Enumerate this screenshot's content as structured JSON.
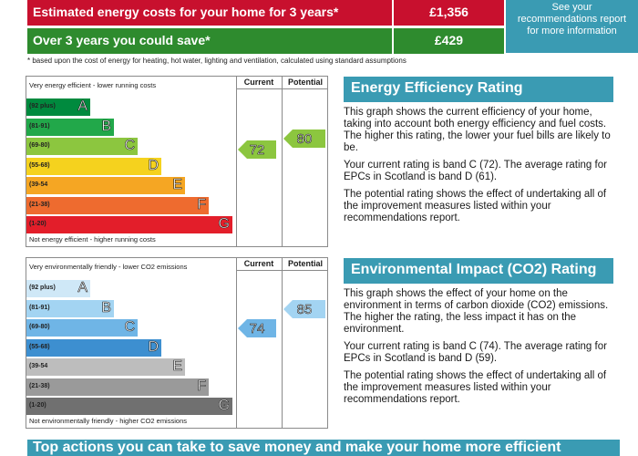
{
  "costs": {
    "estimated_label": "Estimated energy costs for your home for 3 years*",
    "estimated_value": "£1,356",
    "save_label": "Over 3 years you could save*",
    "save_value": "£429",
    "info_link": "See your recommendations report for more information",
    "footnote": "* based upon the cost of energy for heating, hot water, lighting and ventilation, calculated using standard assumptions"
  },
  "energy_chart": {
    "top_text": "Very energy efficient - lower running costs",
    "bottom_text": "Not energy efficient - higher running costs",
    "col_current": "Current",
    "col_potential": "Potential",
    "current": "72",
    "potential": "80",
    "bands": [
      {
        "range": "(92 plus)",
        "letter": "A",
        "color": "#008a3e"
      },
      {
        "range": "(81-91)",
        "letter": "B",
        "color": "#22a84a"
      },
      {
        "range": "(69-80)",
        "letter": "C",
        "color": "#8cc63f"
      },
      {
        "range": "(55-68)",
        "letter": "D",
        "color": "#f5d21e"
      },
      {
        "range": "(39-54",
        "letter": "E",
        "color": "#f5a623"
      },
      {
        "range": "(21-38)",
        "letter": "F",
        "color": "#ee6b2f"
      },
      {
        "range": "(1-20)",
        "letter": "G",
        "color": "#e31e2a"
      }
    ]
  },
  "env_chart": {
    "top_text": "Very environmentally friendly - lower CO2 emissions",
    "bottom_text": "Not environmentally friendly - higher CO2 emissions",
    "col_current": "Current",
    "col_potential": "Potential",
    "current": "74",
    "potential": "85",
    "bands": [
      {
        "range": "(92 plus)",
        "letter": "A",
        "color": "#cfe8f7"
      },
      {
        "range": "(81-91)",
        "letter": "B",
        "color": "#a3d4f2"
      },
      {
        "range": "(69-80)",
        "letter": "C",
        "color": "#6fb5e6"
      },
      {
        "range": "(55-68)",
        "letter": "D",
        "color": "#3d8fd0"
      },
      {
        "range": "(39-54",
        "letter": "E",
        "color": "#bdbdbd"
      },
      {
        "range": "(21-38)",
        "letter": "F",
        "color": "#9a9a9a"
      },
      {
        "range": "(1-20)",
        "letter": "G",
        "color": "#707070"
      }
    ]
  },
  "energy_panel": {
    "title": "Energy Efficiency Rating",
    "p1": "This graph shows the current efficiency of your home, taking into account both energy efficiency and fuel costs. The higher this rating, the lower your fuel bills are likely to be.",
    "p2": "Your current rating is band C (72). The average rating for EPCs in Scotland is band D (61).",
    "p3": "The potential rating shows the effect of undertaking all of the improvement measures listed within your recommendations report."
  },
  "env_panel": {
    "title": "Environmental Impact (CO2) Rating",
    "p1": "This graph shows the effect of your home on the environment in terms of carbon dioxide (CO2) emissions. The higher the rating, the less impact it has on the environment.",
    "p2": "Your current rating is band C (74). The average rating for EPCs in Scotland is band D (59).",
    "p3": "The potential rating shows the effect of undertaking all of the improvement measures listed within your recommendations report."
  },
  "bottom_bar": "Top actions you can take to save money and make your home more efficient"
}
